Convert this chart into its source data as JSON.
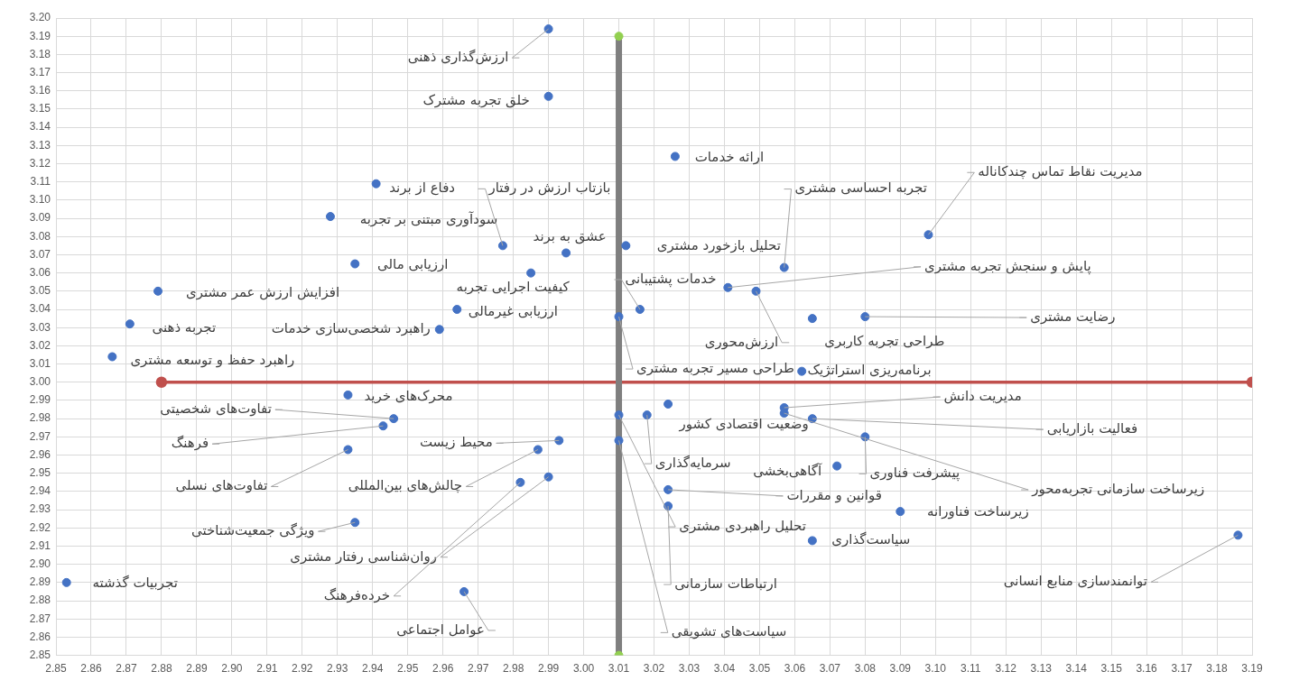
{
  "chart_data": {
    "type": "scatter",
    "xlim": [
      2.85,
      3.19
    ],
    "ylim": [
      2.85,
      3.2
    ],
    "grid": true,
    "marker": "circle",
    "xticks": [
      2.85,
      2.86,
      2.87,
      2.88,
      2.89,
      {
        "value": 2.9,
        "label": "2.90"
      },
      2.91,
      2.92,
      2.93,
      2.94,
      2.95,
      2.96,
      2.97,
      2.98,
      2.99,
      {
        "value": 3.0,
        "label": "3.00"
      },
      3.01,
      3.02,
      3.03,
      3.04,
      3.05,
      3.06,
      3.07,
      3.08,
      3.09,
      {
        "value": 3.1,
        "label": "3.10"
      },
      3.11,
      3.12,
      3.13,
      3.14,
      3.15,
      3.16,
      3.17,
      3.18,
      3.19
    ],
    "yticks": [
      2.85,
      2.86,
      2.87,
      2.88,
      2.89,
      {
        "value": 2.9,
        "label": "2.90"
      },
      2.91,
      2.92,
      2.93,
      2.94,
      2.95,
      2.96,
      2.97,
      2.98,
      2.99,
      {
        "value": 3.0,
        "label": "3.00"
      },
      3.01,
      3.02,
      3.03,
      3.04,
      3.05,
      3.06,
      3.07,
      3.08,
      3.09,
      {
        "value": 3.1,
        "label": "3.10"
      },
      3.11,
      3.12,
      3.13,
      3.14,
      3.15,
      3.16,
      3.17,
      3.18,
      3.19,
      {
        "value": 3.2,
        "label": "3.20"
      }
    ],
    "series": [
      {
        "type": "line",
        "x": [
          3.01,
          3.01
        ],
        "values": [
          2.85,
          3.19
        ],
        "color": "#7f7f7f",
        "marker": "none"
      },
      {
        "x": [
          3.01,
          3.01
        ],
        "values": [
          2.85,
          3.19
        ],
        "color": "#92d050"
      },
      {
        "type": "line",
        "x": [
          2.88,
          3.19
        ],
        "values": [
          3.0,
          3.0
        ],
        "color": "#c0504d"
      },
      {
        "color": "#4472c4",
        "x": [
          2.99,
          2.99,
          2.941,
          2.928,
          2.977,
          2.995,
          2.935,
          2.985,
          2.879,
          2.964,
          2.871,
          2.959,
          2.866,
          3.026,
          3.098,
          3.012,
          3.057,
          3.041,
          3.049,
          3.016,
          3.01,
          3.065,
          3.08,
          3.062,
          3.057,
          3.024,
          3.057,
          3.08,
          3.065,
          3.018,
          3.072,
          3.024,
          3.024,
          3.09,
          3.065,
          3.186,
          3.01,
          3.01,
          2.933,
          2.946,
          2.943,
          2.933,
          2.993,
          2.987,
          2.99,
          2.982,
          2.935,
          2.853,
          2.966
        ],
        "values": [
          3.194,
          3.157,
          3.109,
          3.091,
          3.075,
          3.071,
          3.065,
          3.06,
          3.05,
          3.04,
          3.032,
          3.029,
          3.014,
          3.124,
          3.081,
          3.075,
          3.063,
          3.052,
          3.05,
          3.04,
          3.036,
          3.035,
          3.036,
          3.006,
          2.986,
          2.988,
          2.983,
          2.97,
          2.98,
          2.982,
          2.954,
          2.941,
          2.932,
          2.929,
          2.913,
          2.916,
          2.982,
          2.968,
          2.993,
          2.98,
          2.976,
          2.963,
          2.968,
          2.963,
          2.948,
          2.945,
          2.923,
          2.89,
          2.885
        ]
      }
    ],
    "annotations": [
      {
        "text": "ارزش‌گذاری ذهنی",
        "x": 2.99,
        "y": 3.194
      },
      {
        "text": "خلق تجربه مشترک",
        "x": 2.99,
        "y": 3.157
      },
      {
        "text": "دفاع از برند",
        "x": 2.941,
        "y": 3.109
      },
      {
        "text": "سودآوری مبتنی بر تجربه",
        "x": 2.928,
        "y": 3.091
      },
      {
        "text": "بازتاب ارزش در رفتار",
        "x": 2.977,
        "y": 3.075
      },
      {
        "text": "عشق به برند",
        "x": 2.995,
        "y": 3.071
      },
      {
        "text": "ارزیابی مالی",
        "x": 2.935,
        "y": 3.065
      },
      {
        "text": "کیفیت اجرایی تجربه",
        "x": 2.985,
        "y": 3.06
      },
      {
        "text": "افزایش ارزش عمر مشتری",
        "x": 2.879,
        "y": 3.05
      },
      {
        "text": "ارزیابی غیرمالی",
        "x": 2.964,
        "y": 3.04
      },
      {
        "text": "تجربه ذهنی",
        "x": 2.871,
        "y": 3.032
      },
      {
        "text": "راهبرد شخصی‌سازی خدمات",
        "x": 2.959,
        "y": 3.029
      },
      {
        "text": "راهبرد حفظ و توسعه مشتری",
        "x": 2.866,
        "y": 3.014
      },
      {
        "text": "ارائه خدمات",
        "x": 3.026,
        "y": 3.124
      },
      {
        "text": "مدیریت نقاط تماس چندکاناله",
        "x": 3.098,
        "y": 3.081
      },
      {
        "text": "تحلیل بازخورد مشتری",
        "x": 3.012,
        "y": 3.075
      },
      {
        "text": "تجربه احساسی مشتری",
        "x": 3.057,
        "y": 3.063
      },
      {
        "text": "پایش و سنجش تجربه مشتری",
        "x": 3.041,
        "y": 3.052
      },
      {
        "text": "ارزش‌محوری",
        "x": 3.049,
        "y": 3.05
      },
      {
        "text": "خدمات پشتیبانی",
        "x": 3.016,
        "y": 3.04
      },
      {
        "text": "طراحی مسیر تجربه مشتری",
        "x": 3.01,
        "y": 3.036
      },
      {
        "text": "طراحی تجربه کاربری",
        "x": 3.065,
        "y": 3.035
      },
      {
        "text": "رضایت مشتری",
        "x": 3.08,
        "y": 3.036
      },
      {
        "text": "برنامه‌ریزی استراتژیک",
        "x": 3.062,
        "y": 3.006
      },
      {
        "text": "مدیریت دانش",
        "x": 3.057,
        "y": 2.986
      },
      {
        "text": "وضعیت اقتصادی کشور",
        "x": 3.024,
        "y": 2.988
      },
      {
        "text": "زیرساخت سازمانی تجربه‌محور",
        "x": 3.057,
        "y": 2.983
      },
      {
        "text": "پیشرفت فناوری",
        "x": 3.08,
        "y": 2.97
      },
      {
        "text": "فعالیت بازاریابی",
        "x": 3.065,
        "y": 2.98
      },
      {
        "text": "سرمایه‌گذاری",
        "x": 3.018,
        "y": 2.982
      },
      {
        "text": "آگاهی‌بخشی",
        "x": 3.072,
        "y": 2.954
      },
      {
        "text": "قوانین و مقررات",
        "x": 3.024,
        "y": 2.941
      },
      {
        "text": "ارتباطات سازمانی",
        "x": 3.024,
        "y": 2.932
      },
      {
        "text": "زیرساخت فناورانه",
        "x": 3.09,
        "y": 2.929
      },
      {
        "text": "سیاست‌گذاری",
        "x": 3.065,
        "y": 2.913
      },
      {
        "text": "توانمندسازی منابع انسانی",
        "x": 3.186,
        "y": 2.916
      },
      {
        "text": "تحلیل راهبردی مشتری",
        "x": 3.01,
        "y": 2.982
      },
      {
        "text": "سیاست‌های تشویقی",
        "x": 3.01,
        "y": 2.968
      },
      {
        "text": "محرک‌های خرید",
        "x": 2.933,
        "y": 2.993
      },
      {
        "text": "تفاوت‌های شخصیتی",
        "x": 2.946,
        "y": 2.98
      },
      {
        "text": "فرهنگ",
        "x": 2.943,
        "y": 2.976
      },
      {
        "text": "تفاوت‌های نسلی",
        "x": 2.933,
        "y": 2.963
      },
      {
        "text": "محیط زیست",
        "x": 2.993,
        "y": 2.968
      },
      {
        "text": "چالش‌های بین‌المللی",
        "x": 2.987,
        "y": 2.963
      },
      {
        "text": "روان‌شناسی رفتار مشتری",
        "x": 2.99,
        "y": 2.948
      },
      {
        "text": "خرده‌فرهنگ",
        "x": 2.982,
        "y": 2.945
      },
      {
        "text": "ویژگی جمعیت‌شناختی",
        "x": 2.935,
        "y": 2.923
      },
      {
        "text": "تجربیات گذشته",
        "x": 2.853,
        "y": 2.89
      },
      {
        "text": "عوامل اجتماعی",
        "x": 2.966,
        "y": 2.885
      }
    ]
  }
}
